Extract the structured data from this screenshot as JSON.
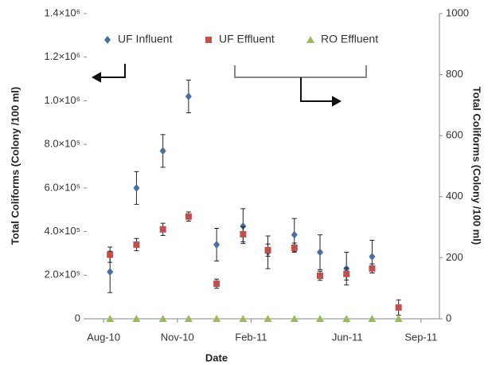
{
  "chart_data": {
    "type": "scatter",
    "x_label": "Date",
    "y_label": "Total Coliforms (Colony /100 ml)",
    "y2_label": "Total Coliforms (Colony /100 ml)",
    "x": [
      40399,
      40432,
      40465,
      40497,
      40532,
      40565,
      40596,
      40629,
      40661,
      40694,
      40726,
      40759
    ],
    "xlim": [
      40370,
      40810
    ],
    "xticks": [
      {
        "value": 40391,
        "label": "Aug-10"
      },
      {
        "value": 40483,
        "label": "Nov-10"
      },
      {
        "value": 40575,
        "label": "Feb-11"
      },
      {
        "value": 40695,
        "label": "Jun-11"
      },
      {
        "value": 40787,
        "label": "Sep-11"
      }
    ],
    "ylim": [
      0,
      1400000
    ],
    "yticks": [
      0,
      {
        "value": 200000,
        "label": "2.0×10⁵"
      },
      {
        "value": 400000,
        "label": "4.0×10⁵"
      },
      {
        "value": 600000,
        "label": "6.0×10⁵"
      },
      {
        "value": 800000,
        "label": "8.0×10⁵"
      },
      {
        "value": 1000000,
        "label": "1.0×10⁶"
      },
      {
        "value": 1200000,
        "label": "1.2×10⁶"
      },
      {
        "value": 1400000,
        "label": "1.4×10⁶"
      }
    ],
    "y2lim": [
      0,
      1000
    ],
    "y2ticks": [
      0,
      200,
      400,
      600,
      800,
      1000
    ],
    "series": [
      {
        "name": "UF Influent",
        "color": "#4a6fa5",
        "marker": "diamond",
        "values": [
          215000,
          600000,
          770000,
          1020000,
          340000,
          425000,
          305000,
          385000,
          305000,
          230000,
          285000,
          null
        ],
        "errors": [
          95000,
          75000,
          75000,
          75000,
          75000,
          80000,
          75000,
          75000,
          80000,
          75000,
          75000,
          null
        ]
      },
      {
        "name": "UF Effluent",
        "color": "#c0504d",
        "marker": "square",
        "axis": "y2",
        "values": [
          210,
          243,
          293,
          335,
          115,
          277,
          225,
          233,
          141,
          147,
          165,
          37
        ],
        "errors": [
          25,
          20,
          20,
          15,
          15,
          25,
          20,
          15,
          15,
          20,
          15,
          25
        ]
      },
      {
        "name": "RO Effluent",
        "color": "#9bbb59",
        "marker": "triangle",
        "values": [
          0,
          0,
          0,
          0,
          0,
          0,
          0,
          0,
          0,
          0,
          0,
          0
        ]
      }
    ]
  }
}
